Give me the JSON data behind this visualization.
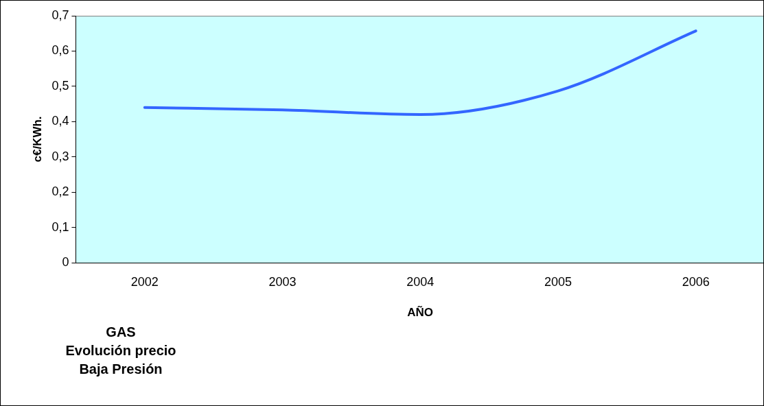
{
  "chart_data": {
    "type": "line",
    "title": "GAS\nEvolución precio\nBaja Presión",
    "xlabel": "AÑO",
    "ylabel": "c€/KWh.",
    "categories": [
      "2002",
      "2003",
      "2004",
      "2005",
      "2006"
    ],
    "series": [
      {
        "color": "#3366ff",
        "values": [
          0.44,
          0.433,
          0.42,
          0.487,
          0.657
        ]
      }
    ],
    "ylim": [
      0,
      0.7
    ],
    "yticks": [
      0,
      {
        "value": 0.1,
        "label": "0,1"
      },
      {
        "value": 0.2,
        "label": "0,2"
      },
      {
        "value": 0.3,
        "label": "0,3"
      },
      {
        "value": 0.4,
        "label": "0,4"
      },
      {
        "value": 0.5,
        "label": "0,5"
      },
      {
        "value": 0.6,
        "label": "0,6"
      },
      {
        "value": 0.7,
        "label": "0,7"
      }
    ],
    "grid": false,
    "legend": false,
    "marker": "none",
    "line_style": "solid"
  }
}
